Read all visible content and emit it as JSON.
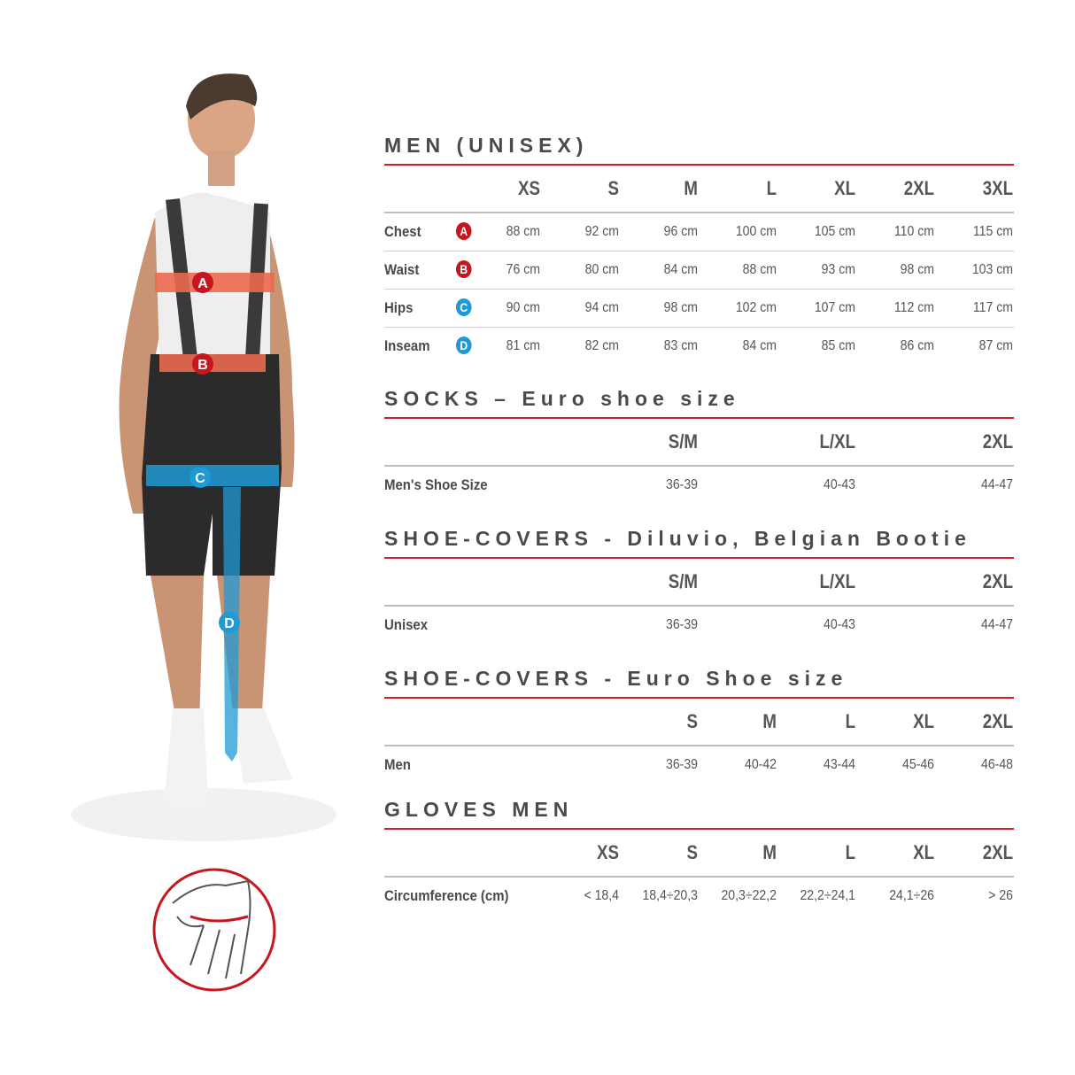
{
  "colors": {
    "accent_red": "#d0202a",
    "badge_red": "#c8161e",
    "badge_blue": "#1f9ad6",
    "text": "#555555"
  },
  "figure": {
    "markers": [
      "A",
      "B",
      "C",
      "D"
    ],
    "icon": "glove-measure-icon"
  },
  "men": {
    "title": "MEN (UNISEX)",
    "sizes": [
      "XS",
      "S",
      "M",
      "L",
      "XL",
      "2XL",
      "3XL"
    ],
    "rows": [
      {
        "label": "Chest",
        "marker": "A",
        "values": [
          "88 cm",
          "92 cm",
          "96 cm",
          "100 cm",
          "105 cm",
          "110 cm",
          "115 cm"
        ]
      },
      {
        "label": "Waist",
        "marker": "B",
        "values": [
          "76 cm",
          "80 cm",
          "84 cm",
          "88 cm",
          "93 cm",
          "98 cm",
          "103 cm"
        ]
      },
      {
        "label": "Hips",
        "marker": "C",
        "values": [
          "90 cm",
          "94 cm",
          "98 cm",
          "102 cm",
          "107 cm",
          "112 cm",
          "117 cm"
        ]
      },
      {
        "label": "Inseam",
        "marker": "D",
        "values": [
          "81 cm",
          "82 cm",
          "83 cm",
          "84 cm",
          "85 cm",
          "86 cm",
          "87 cm"
        ]
      }
    ]
  },
  "socks": {
    "title": "SOCKS – Euro shoe size",
    "sizes": [
      "S/M",
      "L/XL",
      "2XL"
    ],
    "rows": [
      {
        "label": "Men's Shoe Size",
        "values": [
          "36-39",
          "40-43",
          "44-47"
        ]
      }
    ]
  },
  "covers": {
    "title": "SHOE-COVERS - Diluvio, Belgian Bootie",
    "sizes": [
      "S/M",
      "L/XL",
      "2XL"
    ],
    "rows": [
      {
        "label": "Unisex",
        "values": [
          "36-39",
          "40-43",
          "44-47"
        ]
      }
    ]
  },
  "covers_euro": {
    "title": "SHOE-COVERS - Euro Shoe size",
    "sizes": [
      "S",
      "M",
      "L",
      "XL",
      "2XL"
    ],
    "rows": [
      {
        "label": "Men",
        "values": [
          "36-39",
          "40-42",
          "43-44",
          "45-46",
          "46-48"
        ]
      }
    ]
  },
  "gloves": {
    "title": "GLOVES MEN",
    "sizes": [
      "XS",
      "S",
      "M",
      "L",
      "XL",
      "2XL"
    ],
    "rows": [
      {
        "label": "Circumference (cm)",
        "values": [
          "< 18,4",
          "18,4÷20,3",
          "20,3÷22,2",
          "22,2÷24,1",
          "24,1÷26",
          "> 26"
        ]
      }
    ]
  }
}
